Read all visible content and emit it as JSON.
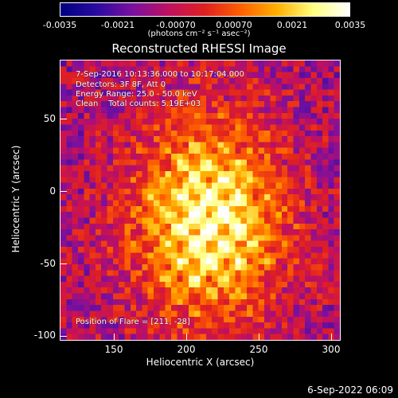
{
  "colorbar": {
    "ticks": [
      "-0.0035",
      "-0.0021",
      "-0.00070",
      "0.00070",
      "0.0021",
      "0.0035"
    ],
    "units": "(photons cm⁻² s⁻¹ asec⁻²)",
    "stops": [
      "#000080",
      "#2a0aa0",
      "#7a10a0",
      "#c01060",
      "#e02020",
      "#ff6000",
      "#ffb000",
      "#ffff80",
      "#ffffff"
    ]
  },
  "title": "Reconstructed RHESSI Image",
  "annotations": {
    "time": "7-Sep-2016 10:13:36.000 to 10:17:04.000",
    "detectors": "Detectors: 3F 8F, Att 0",
    "energy": "Energy Range: 25.0 - 50.0 keV",
    "clean": "Clean    Total counts: 5.19E+03",
    "flare": "Position of Flare = [211, -28]"
  },
  "axes": {
    "x_title": "Heliocentric X (arcsec)",
    "y_title": "Heliocentric Y (arcsec)",
    "x_ticks": [
      "150",
      "200",
      "250",
      "300"
    ],
    "y_ticks": [
      "50",
      "0",
      "-50",
      "-100"
    ]
  },
  "footer": {
    "date": "6-Sep-2022 06:09"
  }
}
